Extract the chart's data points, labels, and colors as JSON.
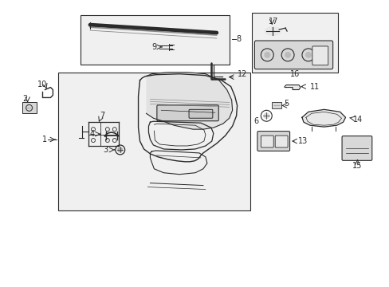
{
  "bg_color": "#ffffff",
  "line_color": "#2a2a2a",
  "fig_width": 4.89,
  "fig_height": 3.6,
  "box_fill": "#f0f0f0",
  "part_fill": "#d8d8d8",
  "part_fill2": "#e8e8e8"
}
